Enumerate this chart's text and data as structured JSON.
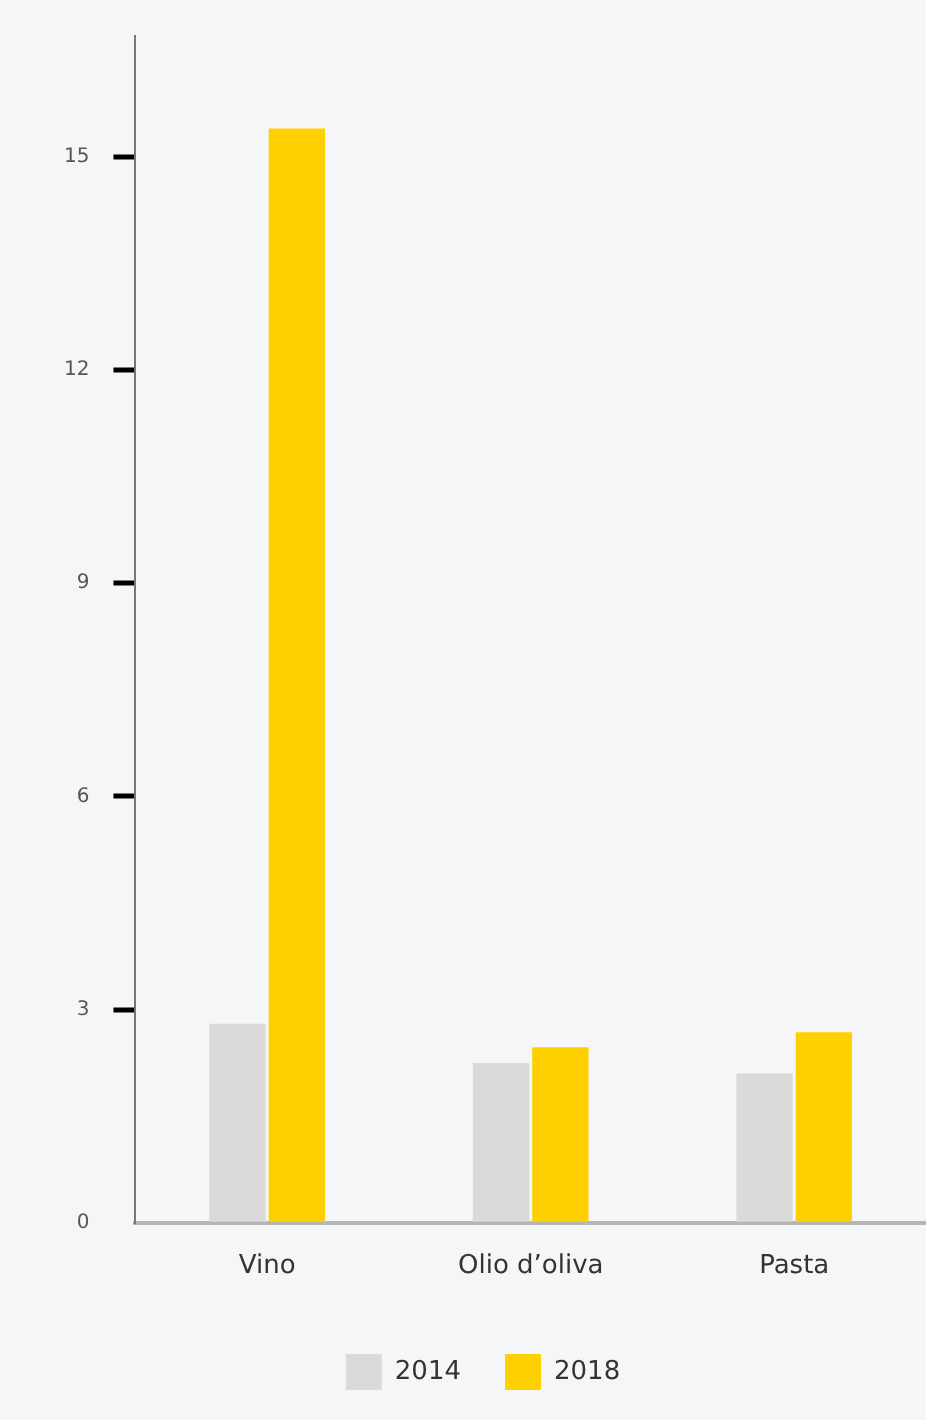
{
  "chart_data": {
    "type": "bar",
    "categories": [
      "Vino",
      "Olio d’oliva",
      "Pasta"
    ],
    "series": [
      {
        "name": "2014",
        "color": "#dadada",
        "values": [
          2.8,
          2.25,
          2.1
        ]
      },
      {
        "name": "2018",
        "color": "#ffd000",
        "values": [
          15.4,
          2.47,
          2.68
        ]
      }
    ],
    "ylim": [
      0,
      16.7
    ],
    "yticks": [
      0,
      3,
      6,
      9,
      12,
      15
    ],
    "grid": false,
    "legend": "bottom"
  }
}
